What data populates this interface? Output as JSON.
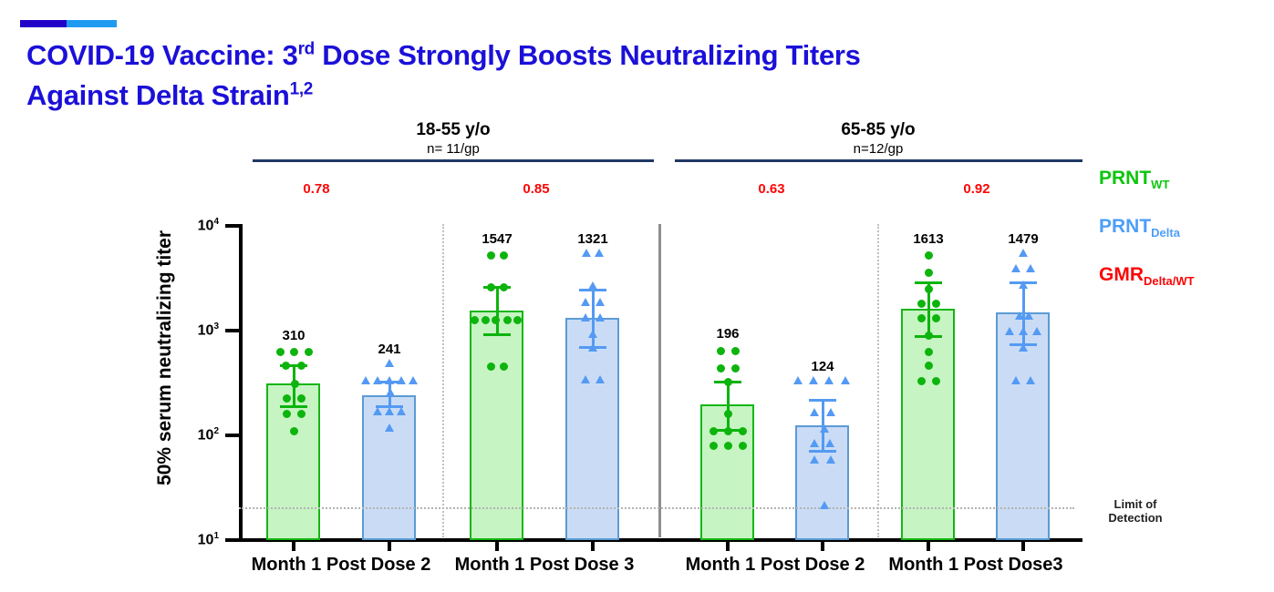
{
  "title": {
    "line1_pre": "COVID-19 Vaccine: 3",
    "line1_sup": "rd",
    "line1_post": " Dose Strongly Boosts Neutralizing Titers",
    "line2_pre": "Against Delta Strain",
    "line2_sup": "1,2"
  },
  "legend": {
    "items": [
      {
        "main": "PRNT",
        "sub": "WT",
        "color": "#0cc60c"
      },
      {
        "main": "PRNT",
        "sub": "Delta",
        "color": "#4d9ef8"
      },
      {
        "main": "GMR",
        "sub": "Delta/WT",
        "color": "#fb0606"
      }
    ]
  },
  "lod": {
    "line1": "Limit of",
    "line2": "Detection"
  },
  "colors": {
    "title_blue": "#1b10d8",
    "deco_dark": "#2203c8",
    "deco_light": "#1e9bf0",
    "header_line": "#1f3864",
    "wt_fill": "#c6f4c2",
    "wt_border": "#14b614",
    "wt_marker": "#0db40d",
    "delta_fill": "#cadcf5",
    "delta_border": "#5b9bd5",
    "delta_marker": "#549af3",
    "gmr_red": "#fb0606",
    "lod_gray": "#b3b3b3",
    "sep_solid": "#8f8f8f",
    "sep_dotted": "#c0c0c0"
  },
  "chart_data": {
    "type": "bar",
    "subtype": "grouped bars with overlaid scatter points and error bars",
    "yscale": "log",
    "ylim": [
      10,
      10000
    ],
    "ylabel": "50% serum neutralizing titer",
    "ytick_exponents": [
      4,
      3,
      2,
      1
    ],
    "limit_of_detection": 20,
    "age_groups": [
      {
        "label": "18-55 y/o",
        "n": "n= 11/gp"
      },
      {
        "label": "65-85 y/o",
        "n": "n=12/gp"
      }
    ],
    "xlabels": [
      "Month 1 Post Dose 2",
      "Month 1 Post Dose 3",
      "Month 1 Post Dose 2",
      "Month 1 Post  Dose3"
    ],
    "gmr_values": [
      "0.78",
      "0.85",
      "0.63",
      "0.92"
    ],
    "series_names": [
      "PRNT_WT",
      "PRNT_Delta"
    ],
    "bars": [
      {
        "series": "WT",
        "age_group": "18-55 y/o",
        "timepoint": "Month 1 Post Dose 2",
        "value": 310,
        "ci": [
          185,
          470
        ],
        "points": [
          {
            "v": 620,
            "dx": -15
          },
          {
            "v": 620,
            "dx": 0
          },
          {
            "v": 620,
            "dx": 16
          },
          {
            "v": 460,
            "dx": -9
          },
          {
            "v": 460,
            "dx": 8
          },
          {
            "v": 310,
            "dx": 1
          },
          {
            "v": 225,
            "dx": -8
          },
          {
            "v": 225,
            "dx": 8
          },
          {
            "v": 160,
            "dx": -8
          },
          {
            "v": 160,
            "dx": 8
          },
          {
            "v": 110,
            "dx": 0
          }
        ]
      },
      {
        "series": "Delta",
        "age_group": "18-55 y/o",
        "timepoint": "Month 1 Post Dose 2",
        "value": 241,
        "ci": [
          185,
          325
        ],
        "points": [
          {
            "v": 455,
            "dx": 0
          },
          {
            "v": 310,
            "dx": -26
          },
          {
            "v": 310,
            "dx": -13
          },
          {
            "v": 310,
            "dx": 0
          },
          {
            "v": 310,
            "dx": 13
          },
          {
            "v": 310,
            "dx": 26
          },
          {
            "v": 240,
            "dx": 1
          },
          {
            "v": 160,
            "dx": -13
          },
          {
            "v": 160,
            "dx": 0
          },
          {
            "v": 160,
            "dx": 13
          },
          {
            "v": 110,
            "dx": 0
          }
        ]
      },
      {
        "series": "WT",
        "age_group": "18-55 y/o",
        "timepoint": "Month 1 Post Dose 3",
        "value": 1547,
        "ci": [
          900,
          2600
        ],
        "points": [
          {
            "v": 5200,
            "dx": -7
          },
          {
            "v": 5200,
            "dx": 7
          },
          {
            "v": 2600,
            "dx": -7
          },
          {
            "v": 2600,
            "dx": 7
          },
          {
            "v": 1250,
            "dx": -25
          },
          {
            "v": 1250,
            "dx": -13
          },
          {
            "v": 1250,
            "dx": -2
          },
          {
            "v": 1250,
            "dx": 11
          },
          {
            "v": 1250,
            "dx": 22
          },
          {
            "v": 455,
            "dx": -7
          },
          {
            "v": 455,
            "dx": 7
          }
        ]
      },
      {
        "series": "Delta",
        "age_group": "18-55 y/o",
        "timepoint": "Month 1 Post Dose 3",
        "value": 1321,
        "ci": [
          690,
          2470
        ],
        "points": [
          {
            "v": 5200,
            "dx": -7
          },
          {
            "v": 5200,
            "dx": 7
          },
          {
            "v": 2500,
            "dx": 0
          },
          {
            "v": 1750,
            "dx": -8
          },
          {
            "v": 1750,
            "dx": 8
          },
          {
            "v": 1250,
            "dx": -8
          },
          {
            "v": 1250,
            "dx": 8
          },
          {
            "v": 870,
            "dx": 0
          },
          {
            "v": 640,
            "dx": 0
          },
          {
            "v": 320,
            "dx": -8
          },
          {
            "v": 320,
            "dx": 8
          }
        ]
      },
      {
        "series": "WT",
        "age_group": "65-85 y/o",
        "timepoint": "Month 1 Post Dose 2",
        "value": 196,
        "ci": [
          110,
          325
        ],
        "points": [
          {
            "v": 640,
            "dx": -8
          },
          {
            "v": 640,
            "dx": 8
          },
          {
            "v": 440,
            "dx": -8
          },
          {
            "v": 440,
            "dx": 8
          },
          {
            "v": 320,
            "dx": 0
          },
          {
            "v": 160,
            "dx": 0
          },
          {
            "v": 110,
            "dx": -16
          },
          {
            "v": 110,
            "dx": 0
          },
          {
            "v": 110,
            "dx": 16
          },
          {
            "v": 80,
            "dx": -16
          },
          {
            "v": 80,
            "dx": 0
          },
          {
            "v": 80,
            "dx": 16
          }
        ]
      },
      {
        "series": "Delta",
        "age_group": "65-85 y/o",
        "timepoint": "Month 1 Post Dose 2",
        "value": 124,
        "ci": [
          70,
          220
        ],
        "points": [
          {
            "v": 310,
            "dx": -27
          },
          {
            "v": 310,
            "dx": -10
          },
          {
            "v": 310,
            "dx": 7
          },
          {
            "v": 310,
            "dx": 25
          },
          {
            "v": 155,
            "dx": -9
          },
          {
            "v": 155,
            "dx": 9
          },
          {
            "v": 108,
            "dx": 2
          },
          {
            "v": 78,
            "dx": -9
          },
          {
            "v": 78,
            "dx": 8
          },
          {
            "v": 55,
            "dx": -9
          },
          {
            "v": 55,
            "dx": 9
          },
          {
            "v": 20,
            "dx": 2
          }
        ]
      },
      {
        "series": "WT",
        "age_group": "65-85 y/o",
        "timepoint": "Month 1 Post  Dose3",
        "value": 1613,
        "ci": [
          870,
          2880
        ],
        "points": [
          {
            "v": 5200,
            "dx": 0
          },
          {
            "v": 3600,
            "dx": 0
          },
          {
            "v": 2500,
            "dx": 0
          },
          {
            "v": 1800,
            "dx": -8
          },
          {
            "v": 1800,
            "dx": 8
          },
          {
            "v": 1300,
            "dx": -8
          },
          {
            "v": 1300,
            "dx": 8
          },
          {
            "v": 900,
            "dx": 0
          },
          {
            "v": 620,
            "dx": 0
          },
          {
            "v": 460,
            "dx": 0
          },
          {
            "v": 330,
            "dx": -8
          },
          {
            "v": 330,
            "dx": 8
          }
        ]
      },
      {
        "series": "Delta",
        "age_group": "65-85 y/o",
        "timepoint": "Month 1 Post  Dose3",
        "value": 1479,
        "ci": [
          730,
          2900
        ],
        "points": [
          {
            "v": 5200,
            "dx": 0
          },
          {
            "v": 3700,
            "dx": -8
          },
          {
            "v": 3700,
            "dx": 8
          },
          {
            "v": 2550,
            "dx": 0
          },
          {
            "v": 1300,
            "dx": -4
          },
          {
            "v": 1300,
            "dx": 6
          },
          {
            "v": 930,
            "dx": -15
          },
          {
            "v": 930,
            "dx": 0
          },
          {
            "v": 930,
            "dx": 15
          },
          {
            "v": 640,
            "dx": 0
          },
          {
            "v": 310,
            "dx": -8
          },
          {
            "v": 310,
            "dx": 8
          }
        ]
      }
    ]
  }
}
